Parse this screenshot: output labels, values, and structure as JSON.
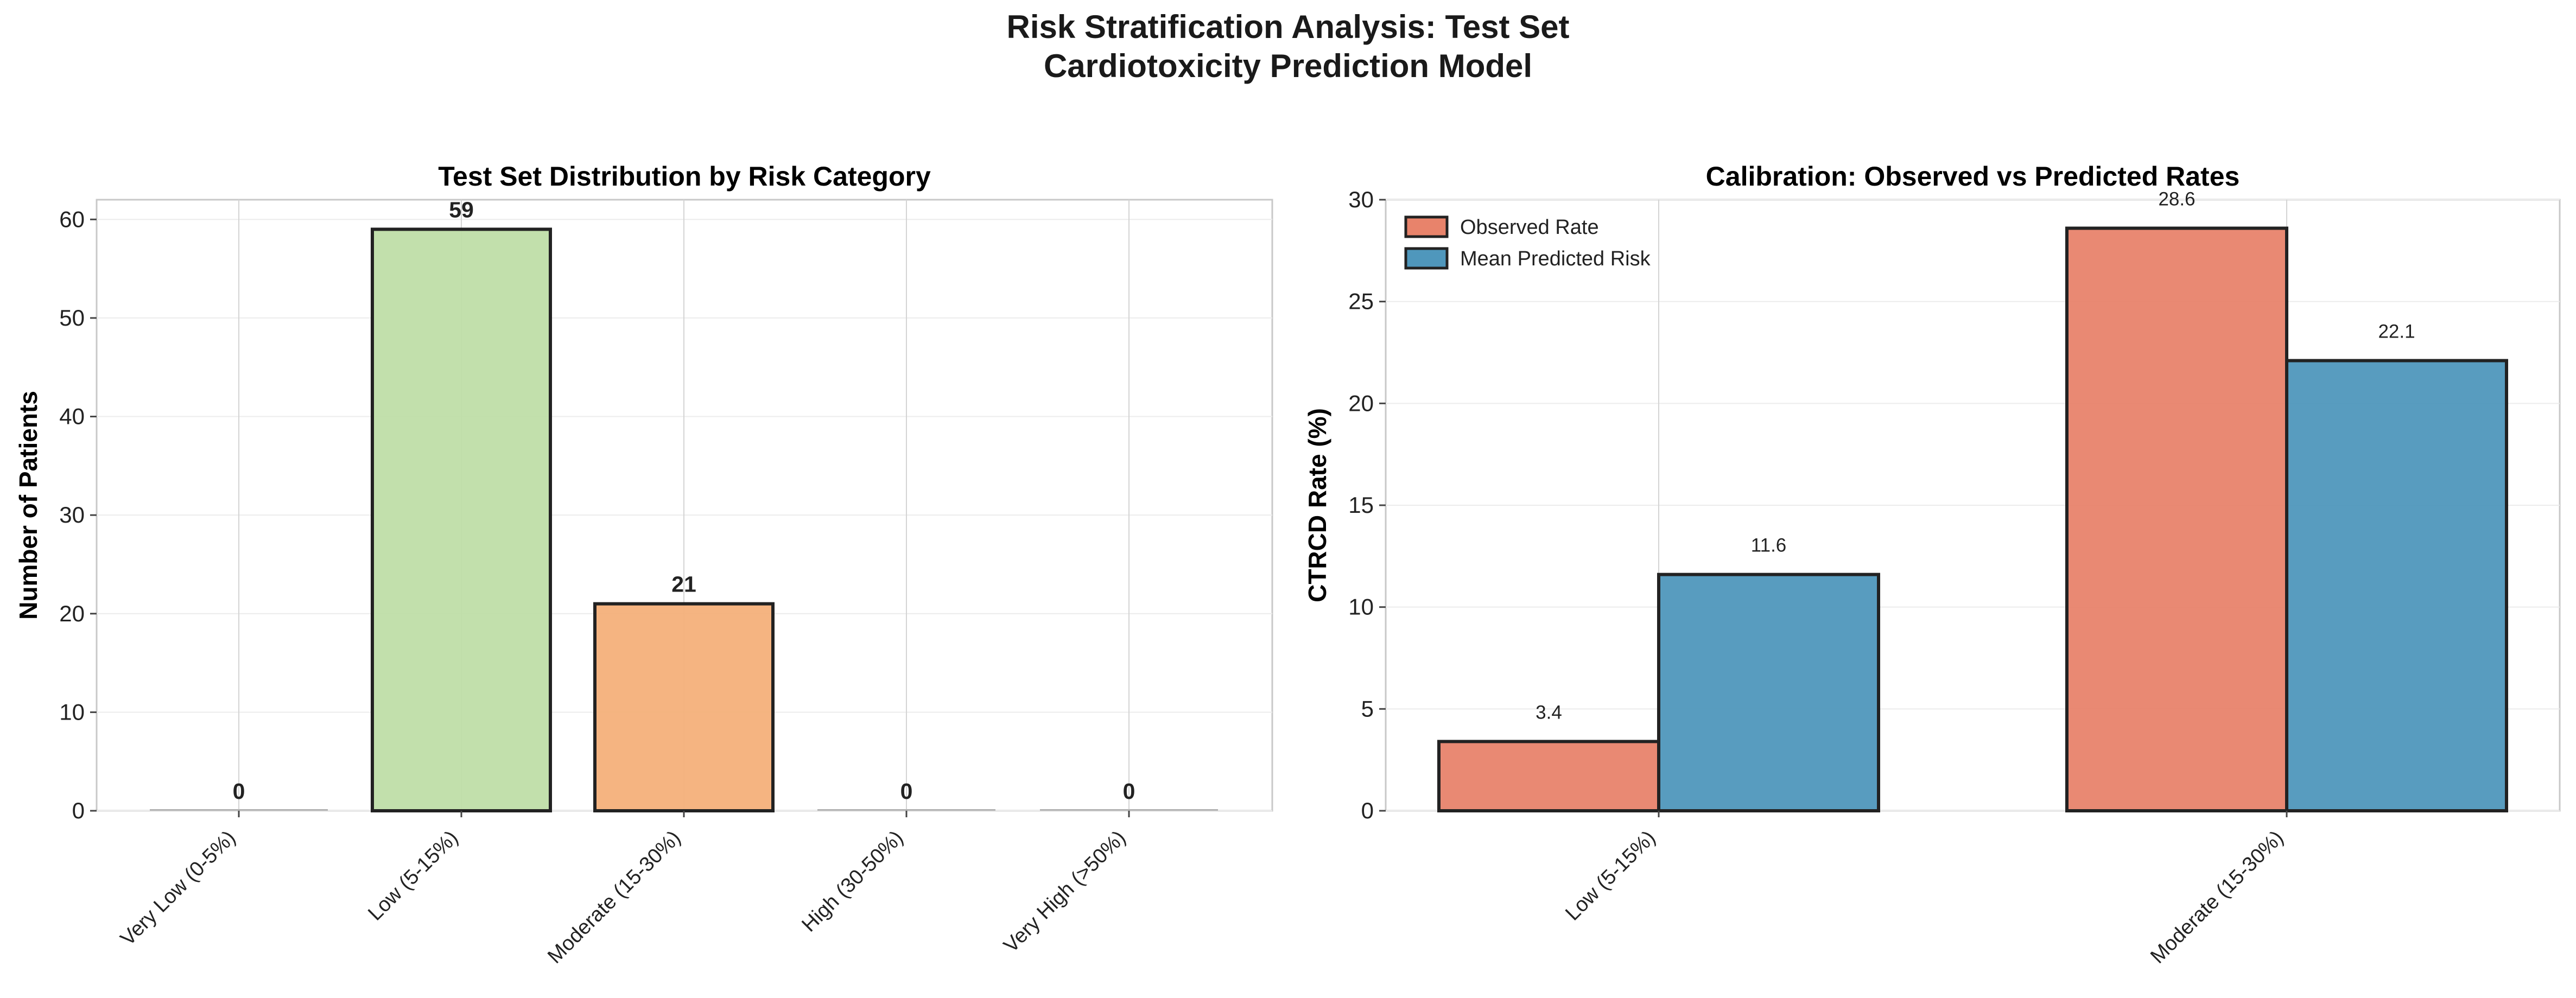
{
  "suptitle": {
    "line1": "Risk Stratification Analysis: Test Set",
    "line2": "Cardiotoxicity Prediction Model"
  },
  "colors": {
    "very_low": "#d9d9d9",
    "low": "#bfdea8",
    "moderate": "#f4b07a",
    "high": "#e77b5e",
    "very_high": "#c0392b",
    "observed": "#e8836b",
    "predicted": "#4f97bc"
  },
  "chart_data": [
    {
      "type": "bar",
      "title": "Test Set Distribution by Risk Category",
      "xlabel": "",
      "ylabel": "Number of Patients",
      "categories": [
        "Very Low (0-5%)",
        "Low (5-15%)",
        "Moderate (15-30%)",
        "High (30-50%)",
        "Very High (>50%)"
      ],
      "values": [
        0,
        59,
        21,
        0,
        0
      ],
      "data_labels": [
        "0",
        "59",
        "21",
        "0",
        "0"
      ],
      "bar_colors": [
        "very_low",
        "low",
        "moderate",
        "high",
        "very_high"
      ],
      "ylim": [
        0,
        62
      ],
      "yticks": [
        "0",
        "10",
        "20",
        "30",
        "40",
        "50",
        "60"
      ],
      "grid": true
    },
    {
      "type": "bar",
      "title": "Calibration: Observed vs Predicted Rates",
      "xlabel": "",
      "ylabel": "CTRCD Rate (%)",
      "categories": [
        "Low (5-15%)",
        "Moderate (15-30%)"
      ],
      "series": [
        {
          "name": "Observed Rate",
          "color": "observed",
          "values": [
            3.4,
            28.6
          ],
          "data_labels": [
            "3.4",
            "28.6"
          ]
        },
        {
          "name": "Mean Predicted Risk",
          "color": "predicted",
          "values": [
            11.6,
            22.1
          ],
          "data_labels": [
            "11.6",
            "22.1"
          ]
        }
      ],
      "ylim": [
        0,
        30
      ],
      "yticks": [
        "0",
        "5",
        "10",
        "15",
        "20",
        "25",
        "30"
      ],
      "legend": "top-left",
      "grid": true
    }
  ]
}
